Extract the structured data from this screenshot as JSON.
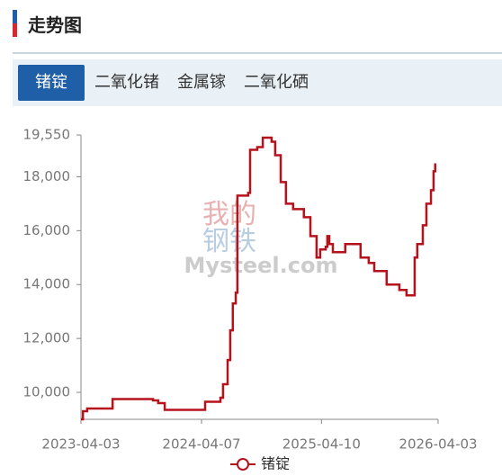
{
  "header": {
    "title": "走势图"
  },
  "tabs": [
    "锗锭",
    "二氧化锗",
    "金属镓",
    "二氧化硒"
  ],
  "active_tab": 0,
  "watermark": [
    "我的",
    "钢铁",
    "Mysteel.com"
  ],
  "chart_data": {
    "type": "line",
    "step": true,
    "x": [
      "2023-04-03",
      "2023-04-09",
      "2023-04-22",
      "2023-07-09",
      "2023-11-10",
      "2023-11-26",
      "2023-12-16",
      "2024-04-18",
      "2024-06-04",
      "2024-06-12",
      "2024-06-26",
      "2024-07-04",
      "2024-07-12",
      "2024-07-21",
      "2024-07-26",
      "2024-08-28",
      "2024-09-03",
      "2024-09-25",
      "2024-10-12",
      "2024-11-08",
      "2024-11-19",
      "2024-12-06",
      "2024-12-22",
      "2025-01-13",
      "2025-02-15",
      "2025-03-07",
      "2025-03-26",
      "2025-04-06",
      "2025-04-23",
      "2025-04-28",
      "2025-05-04",
      "2025-05-15",
      "2025-06-22",
      "2025-08-08",
      "2025-09-02",
      "2025-09-19",
      "2025-10-27",
      "2025-12-05",
      "2025-12-27",
      "2026-01-21",
      "2026-01-29",
      "2026-02-15",
      "2026-02-26",
      "2026-03-12",
      "2026-03-20",
      "2026-03-25"
    ],
    "series": [
      {
        "name": "锗锭",
        "color": "#b5121b",
        "values": [
          9000,
          9300,
          9400,
          9750,
          9700,
          9600,
          9350,
          9650,
          9800,
          10300,
          11200,
          12300,
          13300,
          13700,
          17300,
          17400,
          19000,
          19100,
          19450,
          19300,
          18800,
          17800,
          17000,
          16800,
          16500,
          15800,
          15000,
          15300,
          15400,
          15800,
          15500,
          15200,
          15500,
          15000,
          14800,
          14500,
          14000,
          13800,
          13600,
          15000,
          15500,
          16200,
          17000,
          17500,
          18200,
          18500
        ]
      }
    ],
    "xlim": [
      "2023-04-03",
      "2026-04-03"
    ],
    "xticks": [
      "2023-04-03",
      "2024-04-07",
      "2025-04-10",
      "2026-04-03"
    ],
    "ylim": [
      9000,
      19550
    ],
    "yticks": [
      {
        "value": 10000,
        "label": "10,000"
      },
      {
        "value": 12000,
        "label": "12,000"
      },
      {
        "value": 14000,
        "label": "14,000"
      },
      {
        "value": 16000,
        "label": "16,000"
      },
      {
        "value": 18000,
        "label": "18,000"
      },
      {
        "value": 19550,
        "label": "19,550"
      }
    ],
    "grid": false
  }
}
